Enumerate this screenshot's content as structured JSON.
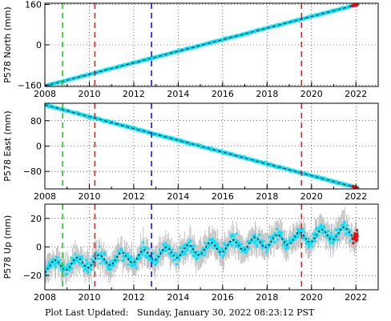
{
  "footer": {
    "label": "Plot Last Updated:",
    "timestamp": "Sunday, January 30, 2022 08:23:12 PST"
  },
  "colors": {
    "data": "#00e5ff",
    "errorbar": "#b4b4b4",
    "model": "#000000",
    "recent": "#ff0000",
    "line_green": "#22cc22",
    "line_red": "#dd2222",
    "line_blue": "#1a1adc"
  },
  "chart_data": [
    {
      "type": "scatter",
      "ylabel": "P578 North (mm)",
      "xlim": [
        2008,
        2023
      ],
      "ylim": [
        -165,
        165
      ],
      "xticks": [
        2008,
        2010,
        2012,
        2014,
        2016,
        2018,
        2020,
        2022
      ],
      "yticks": [
        -160,
        0,
        160
      ],
      "trend": {
        "x": [
          2008.0,
          2022.08
        ],
        "y": [
          -163,
          160
        ]
      },
      "noise": 3,
      "grid": true,
      "vlines": [
        {
          "x": 2008.8,
          "color": "green"
        },
        {
          "x": 2010.25,
          "color": "red"
        },
        {
          "x": 2012.8,
          "color": "blue"
        },
        {
          "x": 2019.55,
          "color": "red"
        }
      ]
    },
    {
      "type": "scatter",
      "ylabel": "P578 East (mm)",
      "xlim": [
        2008,
        2023
      ],
      "ylim": [
        -135,
        135
      ],
      "xticks": [
        2008,
        2010,
        2012,
        2014,
        2016,
        2018,
        2020,
        2022
      ],
      "yticks": [
        -80,
        0,
        80
      ],
      "trend": {
        "x": [
          2008.0,
          2022.08
        ],
        "y": [
          130,
          -132
        ]
      },
      "noise": 3,
      "grid": true,
      "vlines": [
        {
          "x": 2008.8,
          "color": "green"
        },
        {
          "x": 2010.25,
          "color": "red"
        },
        {
          "x": 2012.8,
          "color": "blue"
        },
        {
          "x": 2019.55,
          "color": "red"
        }
      ]
    },
    {
      "type": "scatter",
      "ylabel": "P578 Up (mm)",
      "xlim": [
        2008,
        2023
      ],
      "ylim": [
        -30,
        30
      ],
      "xticks": [
        2008,
        2010,
        2012,
        2014,
        2016,
        2018,
        2020,
        2022
      ],
      "yticks": [
        -20,
        0,
        20
      ],
      "trend": {
        "x": [
          2008.0,
          2022.08
        ],
        "y": [
          -14,
          11
        ]
      },
      "seasonal_amplitude": 4,
      "noise": 6,
      "grid": true,
      "vlines": [
        {
          "x": 2008.8,
          "color": "green"
        },
        {
          "x": 2010.25,
          "color": "red"
        },
        {
          "x": 2012.8,
          "color": "blue"
        },
        {
          "x": 2019.55,
          "color": "red"
        }
      ]
    }
  ]
}
